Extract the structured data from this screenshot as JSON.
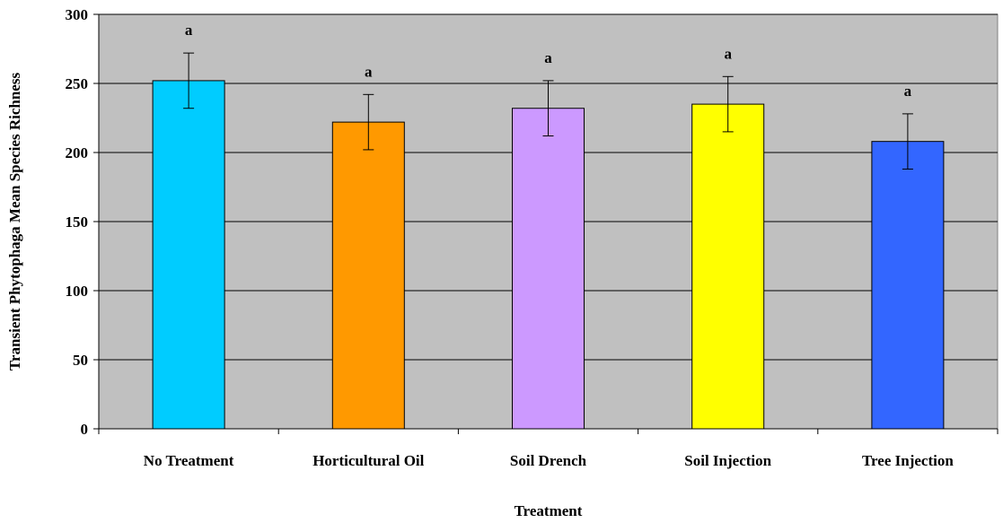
{
  "chart_data": {
    "type": "bar",
    "xlabel": "Treatment",
    "ylabel": "Transient Phytophaga Mean Species Richness",
    "ylim": [
      0,
      300
    ],
    "yticks": [
      0,
      50,
      100,
      150,
      200,
      250,
      300
    ],
    "categories": [
      "No Treatment",
      "Horticultural Oil",
      "Soil Drench",
      "Soil Injection",
      "Tree Injection"
    ],
    "values": [
      252,
      222,
      232,
      235,
      208
    ],
    "error_upper": [
      272,
      242,
      252,
      255,
      228
    ],
    "error_lower": [
      232,
      202,
      212,
      215,
      188
    ],
    "significance_labels": [
      "a",
      "a",
      "a",
      "a",
      "a"
    ],
    "bar_colors": [
      "#00ccff",
      "#ff9900",
      "#cc99ff",
      "#ffff00",
      "#3366ff"
    ],
    "plot_background": "#c0c0c0",
    "grid": true,
    "legend": "none"
  }
}
